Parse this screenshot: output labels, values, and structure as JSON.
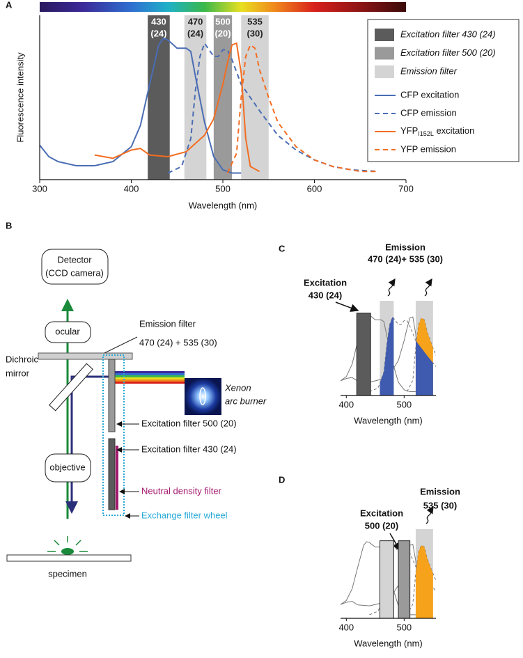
{
  "panel_labels": {
    "a": "A",
    "b": "B",
    "c": "C",
    "d": "D"
  },
  "chart_data": [
    {
      "type": "line",
      "xlabel": "Wavelength (nm)",
      "ylabel": "Fluorescence intensity",
      "xlim": [
        300,
        700
      ],
      "ylim": [
        0,
        100
      ],
      "xticks": [
        300,
        400,
        500,
        600,
        700
      ],
      "filters": [
        {
          "center": 430,
          "width": 24,
          "width_label": "(24)",
          "color": "#5b5b5b"
        },
        {
          "center": 470,
          "width": 24,
          "width_label": "(24)",
          "color": "#d4d4d4"
        },
        {
          "center": 500,
          "width": 20,
          "width_label": "(20)",
          "color": "#9a9a9a"
        },
        {
          "center": 535,
          "width": 30,
          "width_label": "(30)",
          "color": "#d4d4d4"
        }
      ],
      "legend_filters": [
        {
          "label": "Excitation filter 430 (24)",
          "color": "#5b5b5b"
        },
        {
          "label": "Excitation filter 500 (20)",
          "color": "#9a9a9a"
        },
        {
          "label": "Emission filter",
          "color": "#d4d4d4"
        }
      ],
      "series": [
        {
          "name": "CFP excitation",
          "color": "#4a6db4",
          "dashed": false,
          "x": [
            300,
            310,
            320,
            340,
            360,
            380,
            400,
            410,
            420,
            430,
            435,
            440,
            450,
            460,
            465,
            470,
            480,
            490,
            500,
            510,
            520
          ],
          "values": [
            21,
            14,
            11,
            8.5,
            8.5,
            11,
            20,
            33,
            58,
            82,
            86,
            85,
            80,
            80,
            78,
            63,
            35,
            14,
            6,
            4,
            4
          ]
        },
        {
          "name": "CFP emission",
          "color": "#4a6db4",
          "dashed": true,
          "x": [
            440,
            455,
            465,
            470,
            475,
            480,
            490,
            495,
            500,
            505,
            510,
            520,
            540,
            560,
            580,
            600,
            620,
            640,
            670
          ],
          "values": [
            4,
            8,
            25,
            54,
            75,
            83,
            75,
            75,
            79,
            79,
            73,
            58,
            42,
            27,
            18,
            12,
            8,
            6,
            5
          ]
        },
        {
          "name_parts": [
            "YFP",
            "I152L",
            " excitation"
          ],
          "color": "#f26d21",
          "dashed": false,
          "x": [
            360,
            380,
            400,
            410,
            420,
            440,
            460,
            480,
            490,
            500,
            505,
            510,
            515,
            520,
            525,
            530,
            540
          ],
          "values": [
            15,
            13,
            18,
            19,
            15,
            14,
            17,
            27,
            37,
            58,
            71,
            82,
            83,
            65,
            25,
            8,
            5
          ]
        },
        {
          "name": "YFP emission",
          "color": "#f26d21",
          "dashed": true,
          "x": [
            505,
            515,
            520,
            525,
            530,
            535,
            540,
            550,
            560,
            580,
            600,
            620,
            650,
            670
          ],
          "values": [
            4,
            16,
            50,
            75,
            82,
            80,
            67,
            50,
            35,
            20,
            12,
            8,
            5,
            5
          ]
        }
      ]
    },
    {
      "type": "line",
      "xlabel": "Wavelength (nm)",
      "xlim": [
        390,
        555
      ],
      "ylim": [
        0,
        100
      ],
      "xticks": [
        400,
        500
      ],
      "line_color": "#777777",
      "excitation_label": [
        "Excitation",
        "430 (24)"
      ],
      "emission_label": [
        "Emission",
        "470 (24)+ 535 (30)"
      ],
      "filters": [
        {
          "center": 430,
          "width": 24,
          "color": "#5b5b5b",
          "fills": []
        },
        {
          "center": 470,
          "width": 24,
          "color": "#d4d4d4",
          "fills": [
            {
              "series": 1,
              "color": "#3f5bb0"
            }
          ]
        },
        {
          "center": 535,
          "width": 30,
          "color": "#d4d4d4",
          "fills": [
            {
              "series": 3,
              "color": "#f7a21b"
            },
            {
              "series": 1,
              "color": "#3f5bb0"
            }
          ]
        }
      ]
    },
    {
      "type": "line",
      "xlabel": "Wavelength (nm)",
      "xlim": [
        390,
        555
      ],
      "ylim": [
        0,
        100
      ],
      "xticks": [
        400,
        500
      ],
      "line_color": "#777777",
      "excitation_label": [
        "Excitation",
        "500 (20)"
      ],
      "emission_label": [
        "Emission",
        "535 (30)"
      ],
      "filters": [
        {
          "center": 470,
          "width": 24,
          "color": "#d4d4d4",
          "fills": []
        },
        {
          "center": 500,
          "width": 20,
          "color": "#9a9a9a",
          "fills": []
        },
        {
          "center": 535,
          "width": 30,
          "color": "#d4d4d4",
          "fills": [
            {
              "series": 3,
              "color": "#f7a21b"
            }
          ]
        }
      ]
    }
  ],
  "diagram": {
    "detector": [
      "Detector",
      "(CCD camera)"
    ],
    "ocular": "ocular",
    "emission_filter": [
      "Emission filter",
      "470 (24) + 535 (30)"
    ],
    "dichroic": [
      "Dichroic",
      "mirror"
    ],
    "lamp": [
      "Xenon",
      "arc burner"
    ],
    "filter_500": "Excitation filter 500 (20)",
    "filter_430": "Excitation filter 430 (24)",
    "objective": "objective",
    "nd_filter": "Neutral density filter",
    "wheel": "Exchange filter wheel",
    "specimen": "specimen"
  }
}
